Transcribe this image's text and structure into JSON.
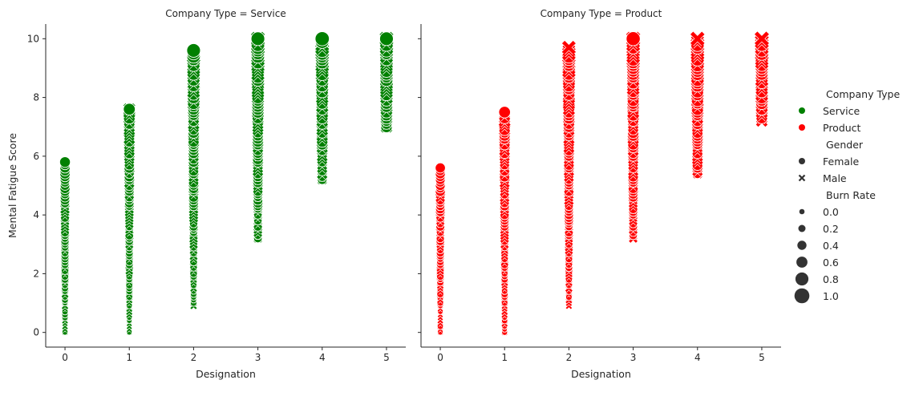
{
  "chart_data": {
    "type": "scatter",
    "xlabel": "Designation",
    "ylabel": "Mental Fatigue Score",
    "xlim": [
      -0.3,
      5.3
    ],
    "ylim": [
      -0.5,
      10.5
    ],
    "x_ticks": [
      "0",
      "1",
      "2",
      "3",
      "4",
      "5"
    ],
    "y_ticks": [
      "0",
      "2",
      "4",
      "6",
      "8",
      "10"
    ],
    "grid": false,
    "shared_y": true,
    "colors": {
      "Service": "#008000",
      "Product": "#ff0000"
    },
    "panels": [
      {
        "title": "Company Type = Service",
        "hue": "Service",
        "columns": [
          {
            "x": 0,
            "min": 0.0,
            "max": 5.8,
            "female_top": 5.8,
            "male_top": 4.4
          },
          {
            "x": 1,
            "min": 0.0,
            "max": 7.6,
            "female_top": 7.6,
            "male_top": 7.6
          },
          {
            "x": 2,
            "min": 0.9,
            "max": 9.6,
            "female_top": 9.6,
            "male_top": 9.4
          },
          {
            "x": 3,
            "min": 3.2,
            "max": 10.0,
            "female_top": 10.0,
            "male_top": 10.0
          },
          {
            "x": 4,
            "min": 5.2,
            "max": 10.0,
            "female_top": 10.0,
            "male_top": 9.8
          },
          {
            "x": 5,
            "min": 7.0,
            "max": 10.0,
            "female_top": 10.0,
            "male_top": 10.0
          }
        ]
      },
      {
        "title": "Company Type = Product",
        "hue": "Product",
        "columns": [
          {
            "x": 0,
            "min": 0.0,
            "max": 5.6,
            "female_top": 5.6,
            "male_top": 4.8
          },
          {
            "x": 1,
            "min": 0.0,
            "max": 7.5,
            "female_top": 7.5,
            "male_top": 7.4
          },
          {
            "x": 2,
            "min": 0.9,
            "max": 9.7,
            "female_top": 9.4,
            "male_top": 9.7
          },
          {
            "x": 3,
            "min": 3.2,
            "max": 10.0,
            "female_top": 10.0,
            "male_top": 10.0
          },
          {
            "x": 4,
            "min": 5.4,
            "max": 10.0,
            "female_top": 10.0,
            "male_top": 10.0
          },
          {
            "x": 5,
            "min": 7.2,
            "max": 10.0,
            "female_top": 10.0,
            "male_top": 10.0
          }
        ]
      }
    ],
    "legend": {
      "placement": "right",
      "hue_title": "Company Type",
      "hue_items": [
        {
          "label": "Service",
          "color": "#008000"
        },
        {
          "label": "Product",
          "color": "#ff0000"
        }
      ],
      "style_title": "Gender",
      "style_items": [
        {
          "label": "Female",
          "marker": "circle"
        },
        {
          "label": "Male",
          "marker": "x"
        }
      ],
      "size_title": "Burn Rate",
      "size_items": [
        {
          "label": "0.0",
          "value": 0.0
        },
        {
          "label": "0.2",
          "value": 0.2
        },
        {
          "label": "0.4",
          "value": 0.4
        },
        {
          "label": "0.6",
          "value": 0.6
        },
        {
          "label": "0.8",
          "value": 0.8
        },
        {
          "label": "1.0",
          "value": 1.0
        }
      ]
    }
  }
}
